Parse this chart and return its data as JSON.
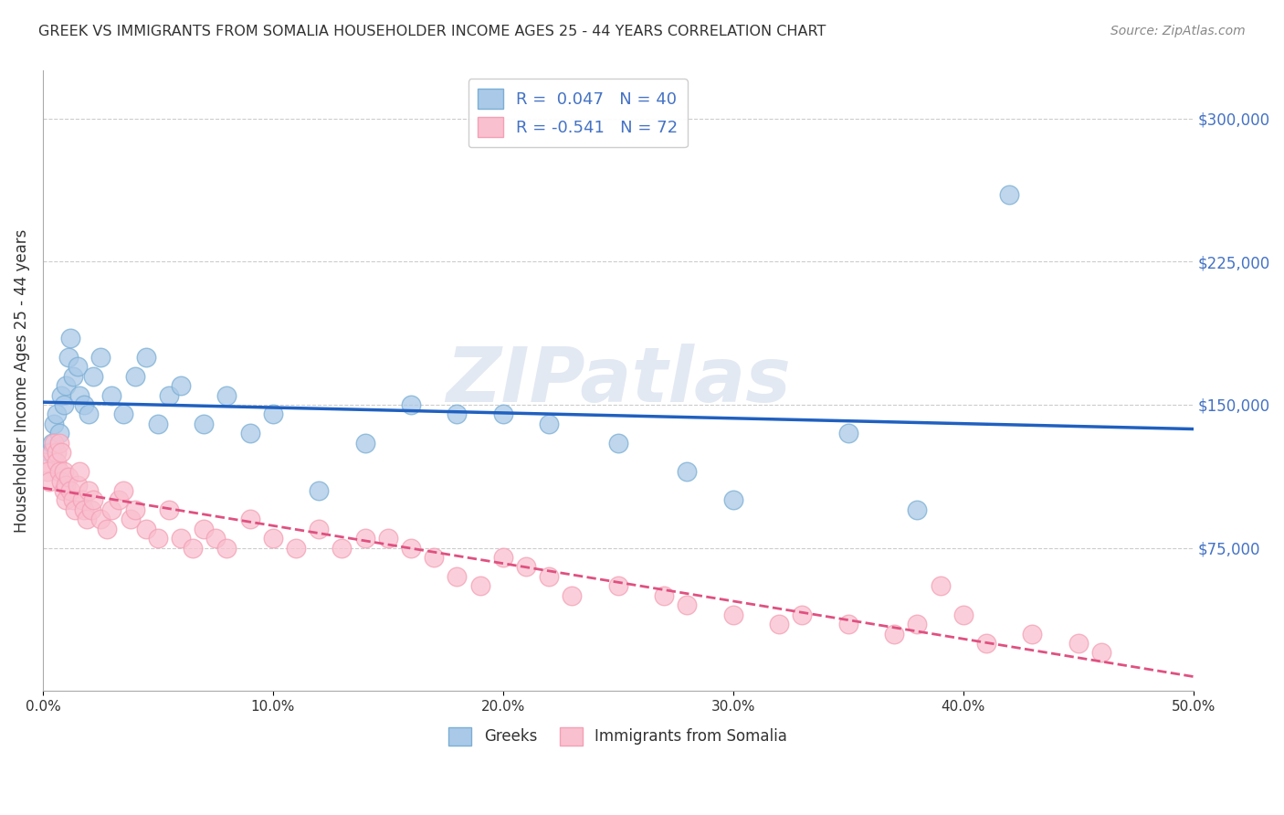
{
  "title": "GREEK VS IMMIGRANTS FROM SOMALIA HOUSEHOLDER INCOME AGES 25 - 44 YEARS CORRELATION CHART",
  "source": "Source: ZipAtlas.com",
  "ylabel": "Householder Income Ages 25 - 44 years",
  "xlim": [
    0.0,
    0.5
  ],
  "ylim": [
    0,
    325000
  ],
  "xticks": [
    0.0,
    0.1,
    0.2,
    0.3,
    0.4,
    0.5
  ],
  "xticklabels": [
    "0.0%",
    "10.0%",
    "20.0%",
    "30.0%",
    "40.0%",
    "50.0%"
  ],
  "yticks_right": [
    75000,
    150000,
    225000,
    300000
  ],
  "ytick_labels_right": [
    "$75,000",
    "$150,000",
    "$225,000",
    "$300,000"
  ],
  "greek_color": "#7bafd4",
  "greek_color_fill": "#aac9e8",
  "somalia_color": "#f4a0b5",
  "somalia_color_fill": "#f9c0d0",
  "legend_blue_label": "R =  0.047   N = 40",
  "legend_pink_label": "R = -0.541   N = 72",
  "watermark": "ZIPatlas",
  "legend_greek": "Greeks",
  "legend_somalia": "Immigrants from Somalia",
  "greek_x": [
    0.003,
    0.004,
    0.005,
    0.006,
    0.007,
    0.008,
    0.009,
    0.01,
    0.011,
    0.012,
    0.013,
    0.015,
    0.016,
    0.018,
    0.02,
    0.022,
    0.025,
    0.03,
    0.035,
    0.04,
    0.045,
    0.05,
    0.055,
    0.06,
    0.07,
    0.08,
    0.09,
    0.1,
    0.12,
    0.14,
    0.16,
    0.18,
    0.2,
    0.22,
    0.25,
    0.28,
    0.3,
    0.35,
    0.38,
    0.42
  ],
  "greek_y": [
    125000,
    130000,
    140000,
    145000,
    135000,
    155000,
    150000,
    160000,
    175000,
    185000,
    165000,
    170000,
    155000,
    150000,
    145000,
    165000,
    175000,
    155000,
    145000,
    165000,
    175000,
    140000,
    155000,
    160000,
    140000,
    155000,
    135000,
    145000,
    105000,
    130000,
    150000,
    145000,
    145000,
    140000,
    130000,
    115000,
    100000,
    135000,
    95000,
    260000
  ],
  "somalia_x": [
    0.001,
    0.002,
    0.003,
    0.004,
    0.005,
    0.006,
    0.006,
    0.007,
    0.007,
    0.008,
    0.008,
    0.009,
    0.009,
    0.01,
    0.01,
    0.011,
    0.012,
    0.013,
    0.014,
    0.015,
    0.016,
    0.017,
    0.018,
    0.019,
    0.02,
    0.021,
    0.022,
    0.025,
    0.028,
    0.03,
    0.033,
    0.035,
    0.038,
    0.04,
    0.045,
    0.05,
    0.055,
    0.06,
    0.065,
    0.07,
    0.075,
    0.08,
    0.09,
    0.1,
    0.11,
    0.12,
    0.13,
    0.14,
    0.15,
    0.16,
    0.17,
    0.18,
    0.19,
    0.2,
    0.21,
    0.22,
    0.23,
    0.25,
    0.27,
    0.28,
    0.3,
    0.32,
    0.33,
    0.35,
    0.37,
    0.38,
    0.39,
    0.4,
    0.41,
    0.43,
    0.45,
    0.46
  ],
  "somalia_y": [
    120000,
    115000,
    110000,
    125000,
    130000,
    125000,
    120000,
    130000,
    115000,
    125000,
    110000,
    105000,
    115000,
    100000,
    108000,
    112000,
    105000,
    100000,
    95000,
    108000,
    115000,
    100000,
    95000,
    90000,
    105000,
    95000,
    100000,
    90000,
    85000,
    95000,
    100000,
    105000,
    90000,
    95000,
    85000,
    80000,
    95000,
    80000,
    75000,
    85000,
    80000,
    75000,
    90000,
    80000,
    75000,
    85000,
    75000,
    80000,
    80000,
    75000,
    70000,
    60000,
    55000,
    70000,
    65000,
    60000,
    50000,
    55000,
    50000,
    45000,
    40000,
    35000,
    40000,
    35000,
    30000,
    35000,
    55000,
    40000,
    25000,
    30000,
    25000,
    20000
  ],
  "title_color": "#333333",
  "source_color": "#888888",
  "right_tick_color": "#4472c4",
  "grid_color": "#cccccc",
  "trend_blue_color": "#2060c0",
  "trend_pink_color": "#e05080",
  "background_color": "#ffffff"
}
